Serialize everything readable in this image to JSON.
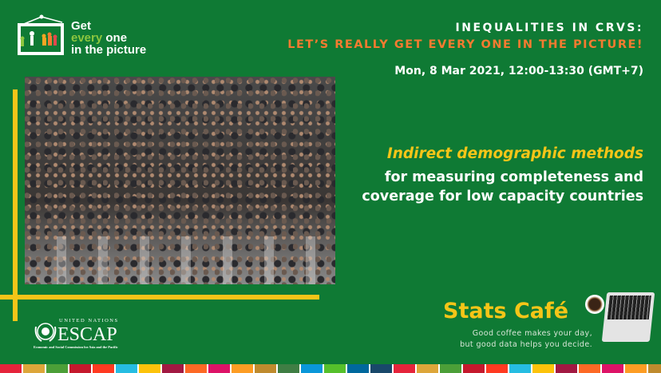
{
  "logo": {
    "line1": "Get",
    "line2_accent": "every",
    "line2_rest": " one",
    "line3": "in the picture"
  },
  "header": {
    "title_line1": "INEQUALITIES IN CRVS:",
    "title_line2": "LET’S REALLY GET EVERY ONE IN THE PICTURE!",
    "date": "Mon, 8 Mar 2021, 12:00-13:30 (GMT+7)"
  },
  "session": {
    "accent": "Indirect demographic methods",
    "line1": "for measuring completeness and",
    "line2": "coverage for low capacity countries"
  },
  "escap": {
    "top": "UNITED NATIONS",
    "name": "ESCAP",
    "full": "Economic and Social Commission for Asia and the Pacific"
  },
  "stats_cafe": {
    "title": "Stats Café",
    "tagline1": "Good coffee makes your day,",
    "tagline2": "but good data helps you decide."
  },
  "colors": {
    "background": "#0f7a34",
    "accent_yellow": "#f5c518",
    "accent_orange": "#f47b30",
    "sdg": [
      "#e5243b",
      "#dda63a",
      "#4c9f38",
      "#c5192d",
      "#ff3a21",
      "#26bde2",
      "#fcc30b",
      "#a21942",
      "#fd6925",
      "#dd1367",
      "#fd9d24",
      "#bf8b2e",
      "#3f7e44",
      "#0a97d9",
      "#56c02b",
      "#00689d",
      "#19486a"
    ]
  }
}
